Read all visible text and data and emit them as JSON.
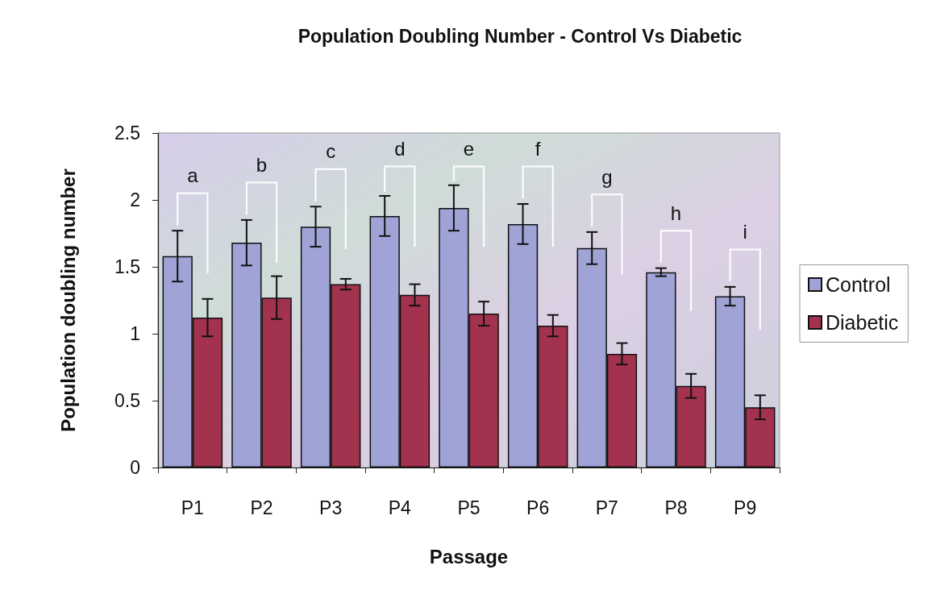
{
  "chart_data": {
    "type": "bar",
    "title": "Population Doubling Number - Control Vs Diabetic",
    "xlabel": "Passage",
    "ylabel": "Population doubling number",
    "categories": [
      "P1",
      "P2",
      "P3",
      "P4",
      "P5",
      "P6",
      "P7",
      "P8",
      "P9"
    ],
    "series": [
      {
        "name": "Control",
        "color": "#9fa3d6",
        "values": [
          1.58,
          1.68,
          1.8,
          1.88,
          1.94,
          1.82,
          1.64,
          1.46,
          1.28
        ],
        "errors": [
          0.19,
          0.17,
          0.15,
          0.15,
          0.17,
          0.15,
          0.12,
          0.03,
          0.07
        ]
      },
      {
        "name": "Diabetic",
        "color": "#a3324f",
        "values": [
          1.12,
          1.27,
          1.37,
          1.29,
          1.15,
          1.06,
          0.85,
          0.61,
          0.45
        ],
        "errors": [
          0.14,
          0.16,
          0.04,
          0.08,
          0.09,
          0.08,
          0.08,
          0.09,
          0.09
        ]
      }
    ],
    "ylim": [
      0,
      2.5
    ],
    "yticks": [
      0,
      0.5,
      1,
      1.5,
      2,
      2.5
    ],
    "grid": false,
    "legend": "right",
    "annotations": [
      "a",
      "b",
      "c",
      "d",
      "e",
      "f",
      "g",
      "h",
      "i"
    ]
  }
}
